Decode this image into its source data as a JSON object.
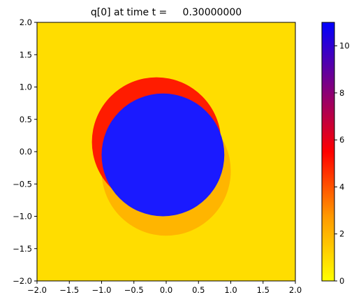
{
  "chart_data": {
    "type": "heatmap",
    "title": "q[0] at time t =     0.30000000",
    "xlabel": "",
    "ylabel": "",
    "xlim": [
      -2.0,
      2.0
    ],
    "ylim": [
      -2.0,
      2.0
    ],
    "x_ticks": [
      "−2.0",
      "−1.5",
      "−1.0",
      "−0.5",
      "0.0",
      "0.5",
      "1.0",
      "1.5",
      "2.0"
    ],
    "x_tick_values": [
      -2.0,
      -1.5,
      -1.0,
      -0.5,
      0.0,
      0.5,
      1.0,
      1.5,
      2.0
    ],
    "y_ticks": [
      "2.0",
      "1.5",
      "1.0",
      "0.5",
      "0.0",
      "−0.5",
      "−1.0",
      "−1.5",
      "−2.0"
    ],
    "y_tick_values": [
      2.0,
      1.5,
      1.0,
      0.5,
      0.0,
      -0.5,
      -1.0,
      -1.5,
      -2.0
    ],
    "grid": false,
    "colorbar": {
      "range": [
        0,
        11
      ],
      "ticks": [
        "10",
        "8",
        "6",
        "4",
        "2",
        "0"
      ],
      "tick_values": [
        10,
        8,
        6,
        4,
        2,
        0
      ],
      "colormap": [
        "#ffff00",
        "#ff9900",
        "#ff0000",
        "#800080",
        "#0000ff"
      ],
      "placement": "right"
    },
    "field": {
      "background_value": 1.0,
      "background_color": "#ffdd00",
      "core": {
        "center": [
          -0.05,
          -0.05
        ],
        "radius": 0.95,
        "value": 11.0,
        "color": "#1a1aff"
      },
      "outer_disk": {
        "center": [
          0.0,
          -0.3
        ],
        "radius": 1.0,
        "value": 2.0
      },
      "shock_ring": {
        "center": [
          -0.15,
          0.15
        ],
        "radius": 1.0,
        "value": 5.0
      }
    }
  }
}
